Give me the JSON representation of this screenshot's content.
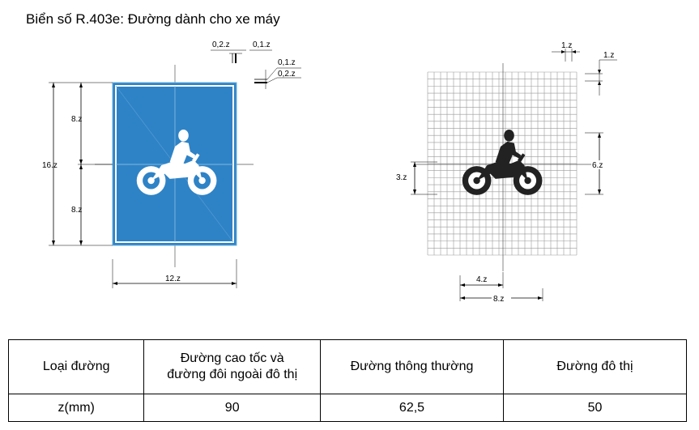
{
  "title": "Biển số R.403e: Đường dành cho xe máy",
  "dims": {
    "top_a": "0,2.z",
    "top_b": "0,1.z",
    "right_a": "0,1.z",
    "right_b": "0,2.z",
    "height_upper": "8.z",
    "height_total": "16.z",
    "height_lower": "8.z",
    "width_total": "12.z",
    "grid_cell_w": "1.z",
    "grid_cell_h": "1.z",
    "icon_h_left": "3.z",
    "icon_h_right": "6.z",
    "icon_w_half": "4.z",
    "icon_w_full": "8.z"
  },
  "colors": {
    "sign_blue": "#2e83c6",
    "sign_border": "#ffffff",
    "grid": "#9a9a9a"
  },
  "table": {
    "headers": [
      "Loại đường",
      "Đường cao tốc và",
      "đường đôi ngoài đô thị",
      "Đường thông thường",
      "Đường đô thị"
    ],
    "row_label": "z(mm)",
    "values": [
      "90",
      "62,5",
      "50"
    ]
  }
}
